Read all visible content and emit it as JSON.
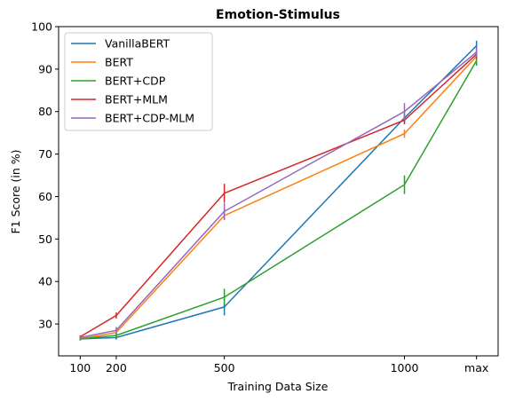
{
  "chart_data": {
    "type": "line",
    "title": "Emotion-Stimulus",
    "xlabel": "Training Data Size",
    "ylabel": "F1 Score (in %)",
    "x": [
      100,
      200,
      500,
      1000,
      1200
    ],
    "x_tick_labels": [
      "100",
      "200",
      "500",
      "1000",
      "max"
    ],
    "ylim": [
      22.5,
      100
    ],
    "yticks": [
      30,
      40,
      50,
      60,
      70,
      80,
      90,
      100
    ],
    "grid": false,
    "legend_position": "top-left",
    "series": [
      {
        "name": "VanillaBERT",
        "color": "#1f77b4",
        "values": [
          26.5,
          26.8,
          34.0,
          78.5,
          95.5
        ],
        "errors": [
          0.3,
          0.5,
          2.0,
          1.0,
          1.2
        ]
      },
      {
        "name": "BERT",
        "color": "#ff7f0e",
        "values": [
          26.5,
          28.0,
          55.5,
          74.8,
          93.0
        ],
        "errors": [
          0.3,
          0.8,
          1.0,
          1.0,
          1.0
        ]
      },
      {
        "name": "BERT+CDP",
        "color": "#2ca02c",
        "values": [
          26.5,
          27.3,
          36.3,
          62.8,
          92.0
        ],
        "errors": [
          0.4,
          0.7,
          2.0,
          2.2,
          1.2
        ]
      },
      {
        "name": "BERT+MLM",
        "color": "#d62728",
        "values": [
          27.0,
          32.0,
          60.8,
          78.0,
          93.5
        ],
        "errors": [
          0.3,
          0.7,
          2.2,
          1.0,
          1.0
        ]
      },
      {
        "name": "BERT+CDP-MLM",
        "color": "#9467bd",
        "values": [
          26.8,
          28.5,
          56.5,
          80.0,
          94.0
        ],
        "errors": [
          0.3,
          0.8,
          2.0,
          2.0,
          1.0
        ]
      }
    ]
  }
}
